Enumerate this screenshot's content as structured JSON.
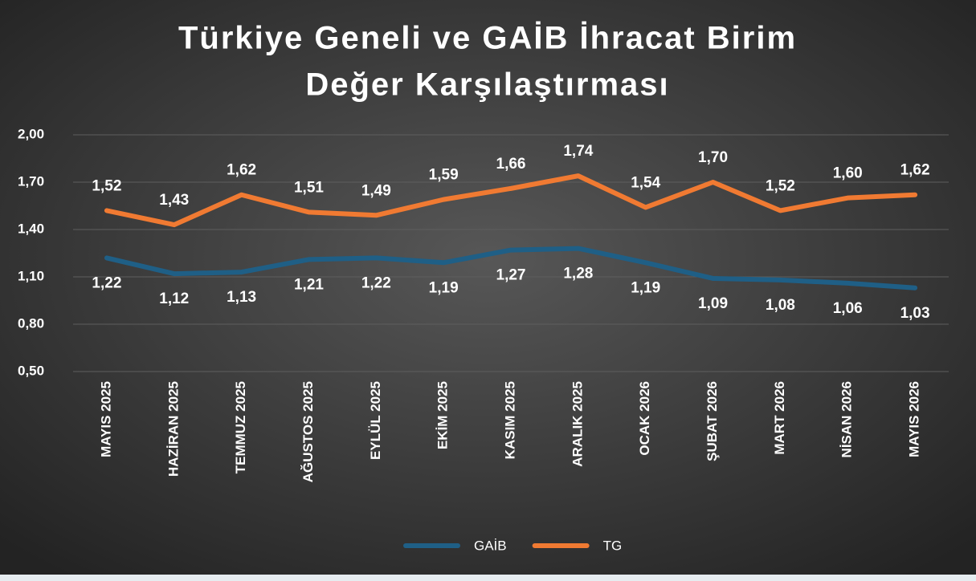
{
  "chart_data": {
    "type": "line",
    "title": [
      "Türkiye Geneli ve GAİB İhracat Birim",
      "Değer Karşılaştırması"
    ],
    "categories": [
      "MAYIS 2025",
      "HAZİRAN 2025",
      "TEMMUZ 2025",
      "AĞUSTOS 2025",
      "EYLÜL 2025",
      "EKİM 2025",
      "KASIM 2025",
      "ARALIK 2025",
      "OCAK 2026",
      "ŞUBAT 2026",
      "MART 2026",
      "NİSAN 2026",
      "MAYIS 2026"
    ],
    "series": [
      {
        "name": "GAİB",
        "color": "#1f5f86",
        "values": [
          1.22,
          1.12,
          1.13,
          1.21,
          1.22,
          1.19,
          1.27,
          1.28,
          1.19,
          1.09,
          1.08,
          1.06,
          1.03
        ],
        "value_labels": [
          "1,22",
          "1,12",
          "1,13",
          "1,21",
          "1,22",
          "1,19",
          "1,27",
          "1,28",
          "1,19",
          "1,09",
          "1,08",
          "1,06",
          "1,03"
        ]
      },
      {
        "name": "TG",
        "color": "#f07a32",
        "values": [
          1.52,
          1.43,
          1.62,
          1.51,
          1.49,
          1.59,
          1.66,
          1.74,
          1.54,
          1.7,
          1.52,
          1.6,
          1.62
        ],
        "value_labels": [
          "1,52",
          "1,43",
          "1,62",
          "1,51",
          "1,49",
          "1,59",
          "1,66",
          "1,74",
          "1,54",
          "1,70",
          "1,52",
          "1,60",
          "1,62"
        ]
      }
    ],
    "ylim": [
      0.5,
      2.0
    ],
    "yticks": [
      {
        "value": 0.5,
        "label": "0,50"
      },
      {
        "value": 0.8,
        "label": "0,80"
      },
      {
        "value": 1.1,
        "label": "1,10"
      },
      {
        "value": 1.4,
        "label": "1,40"
      },
      {
        "value": 1.7,
        "label": "1,70"
      },
      {
        "value": 2.0,
        "label": "2,00"
      }
    ],
    "grid": true,
    "legend": "bottom"
  }
}
